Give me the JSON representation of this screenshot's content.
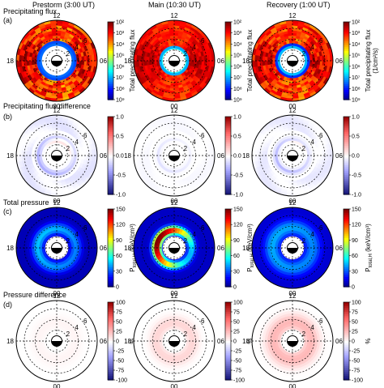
{
  "figure": {
    "column_titles": [
      "Prestorm (3:00 UT)",
      "Main (10:30 UT)",
      "Recovery (1:00 UT)"
    ],
    "rows": [
      {
        "panel": "(a)",
        "title": "Precipitating flux",
        "colorbar_label": "Total precipitating flux",
        "colorbar_unit": "(1/cm²/s)"
      },
      {
        "panel": "(b)",
        "title": "Precipitating flux difference",
        "colorbar_label": "",
        "colorbar_unit": ""
      },
      {
        "panel": "(c)",
        "title": "Total pressure",
        "colorbar_label": "P",
        "colorbar_sub": "total,H",
        "colorbar_unit": "(keV/cm³)"
      },
      {
        "panel": "(d)",
        "title": "Pressure difference",
        "colorbar_label": "",
        "colorbar_unit": "%"
      }
    ]
  },
  "chart_data": [
    {
      "type": "heatmap",
      "row": "(a)",
      "column": "Prestorm (3:00 UT)",
      "colorscale": "jet",
      "scale": "log",
      "range": [
        100.0,
        1000000000.0
      ],
      "ticks": [
        "10²",
        "10³",
        "10⁴",
        "10⁵",
        "10⁶",
        "10⁷",
        "10⁸",
        "10⁹"
      ],
      "radial_rings": [
        "2",
        "4",
        "6"
      ],
      "mlt_labels": [
        "12",
        "18",
        "06",
        "00"
      ],
      "pattern": {
        "inner_r": 2.6,
        "band_center": 3.3,
        "band_width": 0.5,
        "band_value": 0.02,
        "outer_value": 0.85,
        "outer_noise": 0.12
      }
    },
    {
      "type": "heatmap",
      "row": "(a)",
      "column": "Main (10:30 UT)",
      "colorscale": "jet",
      "scale": "log",
      "range": [
        100.0,
        1000000000.0
      ],
      "ticks": [
        "10²",
        "10³",
        "10⁴",
        "10⁵",
        "10⁶",
        "10⁷",
        "10⁸",
        "10⁹"
      ],
      "radial_rings": [
        "2",
        "4",
        "6"
      ],
      "mlt_labels": [
        "12",
        "18",
        "06",
        "00"
      ],
      "pattern": {
        "inner_r": 1.9,
        "band_center": 2.4,
        "band_width": 0.45,
        "band_value": 0.15,
        "outer_value": 0.88,
        "outer_noise": 0.06
      }
    },
    {
      "type": "heatmap",
      "row": "(a)",
      "column": "Recovery (1:00 UT)",
      "colorscale": "jet",
      "scale": "log",
      "range": [
        100.0,
        1000000000.0
      ],
      "ticks": [
        "10²",
        "10³",
        "10⁴",
        "10⁵",
        "10⁶",
        "10⁷",
        "10⁸",
        "10⁹"
      ],
      "radial_rings": [
        "2",
        "4",
        "6"
      ],
      "mlt_labels": [
        "12",
        "18",
        "06",
        "00"
      ],
      "pattern": {
        "inner_r": 2.2,
        "band_center": 2.9,
        "band_width": 0.5,
        "band_value": 0.05,
        "outer_value": 0.85,
        "outer_noise": 0.1
      }
    },
    {
      "type": "heatmap",
      "row": "(b)",
      "column": "Prestorm (3:00 UT)",
      "colorscale": "bwr",
      "range": [
        -1.0,
        1.0
      ],
      "ticks": [
        "1.0",
        "0.5",
        "0.0",
        "-0.5",
        "-1.0"
      ],
      "radial_rings": [
        "2",
        "4",
        "6"
      ],
      "mlt_labels": [
        "12",
        "18",
        "06",
        "00"
      ],
      "pattern": {
        "kind": "diff",
        "ring_r": 3.4,
        "ring_w": 0.5,
        "amp": -0.35,
        "red_r": 2.8,
        "red_amp": 0.25,
        "outer_amp": -0.12
      }
    },
    {
      "type": "heatmap",
      "row": "(b)",
      "column": "Main (10:30 UT)",
      "colorscale": "bwr",
      "range": [
        -1.0,
        1.0
      ],
      "ticks": [
        "1.0",
        "0.5",
        "0.0",
        "-0.5",
        "-1.0"
      ],
      "radial_rings": [
        "2",
        "4",
        "6"
      ],
      "mlt_labels": [
        "12",
        "18",
        "06",
        "00"
      ],
      "pattern": {
        "kind": "diff",
        "ring_r": 3.0,
        "ring_w": 0.4,
        "amp": -0.12,
        "red_r": 2.3,
        "red_amp": 0.05,
        "outer_amp": -0.03
      }
    },
    {
      "type": "heatmap",
      "row": "(b)",
      "column": "Recovery (1:00 UT)",
      "colorscale": "bwr",
      "range": [
        -1.0,
        1.0
      ],
      "ticks": [
        "1.0",
        "0.5",
        "0.0",
        "-0.5",
        "-1.0"
      ],
      "radial_rings": [
        "2",
        "4",
        "6"
      ],
      "mlt_labels": [
        "12",
        "18",
        "06",
        "00"
      ],
      "pattern": {
        "kind": "diff",
        "ring_r": 3.1,
        "ring_w": 0.45,
        "amp": -0.3,
        "red_r": 2.6,
        "red_amp": 0.08,
        "outer_amp": -0.1
      }
    },
    {
      "type": "heatmap",
      "row": "(c)",
      "column": "Prestorm (3:00 UT)",
      "colorscale": "jet",
      "range": [
        0,
        150
      ],
      "ticks": [
        "150",
        "120",
        "90",
        "60",
        "30",
        "0"
      ],
      "radial_rings": [
        "2",
        "4",
        "6"
      ],
      "mlt_labels": [
        "12",
        "18",
        "06",
        "00"
      ],
      "pattern": {
        "kind": "pressure",
        "peak_r": 3.6,
        "peak_w": 1.1,
        "peak": 35,
        "base": 8,
        "asym": 0.15
      }
    },
    {
      "type": "heatmap",
      "row": "(c)",
      "column": "Main (10:30 UT)",
      "colorscale": "jet",
      "range": [
        0,
        150
      ],
      "ticks": [
        "150",
        "120",
        "90",
        "60",
        "30",
        "0"
      ],
      "radial_rings": [
        "2",
        "4",
        "6"
      ],
      "mlt_labels": [
        "12",
        "18",
        "06",
        "00"
      ],
      "pattern": {
        "kind": "pressure",
        "peak_r": 3.3,
        "peak_w": 0.8,
        "peak": 95,
        "base": 10,
        "asym": 0.6
      }
    },
    {
      "type": "heatmap",
      "row": "(c)",
      "column": "Recovery (1:00 UT)",
      "colorscale": "jet",
      "range": [
        0,
        150
      ],
      "ticks": [
        "150",
        "120",
        "90",
        "60",
        "30",
        "0"
      ],
      "radial_rings": [
        "2",
        "4",
        "6"
      ],
      "mlt_labels": [
        "12",
        "18",
        "06",
        "00"
      ],
      "pattern": {
        "kind": "pressure",
        "peak_r": 3.8,
        "peak_w": 1.4,
        "peak": 30,
        "base": 12,
        "asym": 0.1
      }
    },
    {
      "type": "heatmap",
      "row": "(d)",
      "column": "Prestorm (3:00 UT)",
      "colorscale": "bwr",
      "range": [
        -100,
        100
      ],
      "unit": "%",
      "ticks": [
        "100",
        "75",
        "50",
        "25",
        "0",
        "-25",
        "-50",
        "-75",
        "-100"
      ],
      "radial_rings": [
        "2",
        "4",
        "6"
      ],
      "mlt_labels": [
        "12",
        "18",
        "06",
        "00"
      ],
      "pattern": {
        "kind": "pdiff",
        "peak_r": 3.5,
        "peak_w": 1.5,
        "amp": 0.02
      }
    },
    {
      "type": "heatmap",
      "row": "(d)",
      "column": "Main (10:30 UT)",
      "colorscale": "bwr",
      "range": [
        -100,
        100
      ],
      "unit": "%",
      "ticks": [
        "100",
        "75",
        "50",
        "25",
        "0",
        "-25",
        "-50",
        "-75",
        "-100"
      ],
      "radial_rings": [
        "2",
        "4",
        "6"
      ],
      "mlt_labels": [
        "12",
        "18",
        "06",
        "00"
      ],
      "pattern": {
        "kind": "pdiff",
        "peak_r": 3.4,
        "peak_w": 1.3,
        "amp": 0.08
      }
    },
    {
      "type": "heatmap",
      "row": "(d)",
      "column": "Recovery (1:00 UT)",
      "colorscale": "bwr",
      "range": [
        -100,
        100
      ],
      "unit": "%",
      "ticks": [
        "100",
        "75",
        "50",
        "25",
        "0",
        "-25",
        "-50",
        "-75",
        "-100"
      ],
      "radial_rings": [
        "2",
        "4",
        "6"
      ],
      "mlt_labels": [
        "12",
        "18",
        "06",
        "00"
      ],
      "pattern": {
        "kind": "pdiff",
        "peak_r": 3.5,
        "peak_w": 1.6,
        "amp": 0.14
      }
    }
  ]
}
